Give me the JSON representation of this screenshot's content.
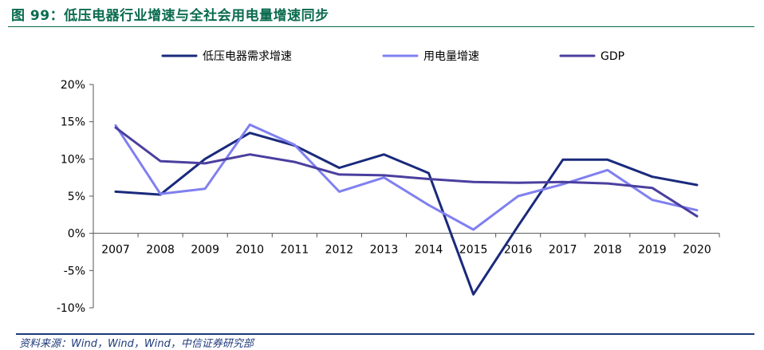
{
  "figure": {
    "title": "图 99：低压电器行业增速与全社会用电量增速同步"
  },
  "colors": {
    "title_green": "#0a6b4e",
    "axis": "#555555",
    "source_blue": "#1f3a7a"
  },
  "chart_data": {
    "type": "line",
    "categories": [
      "2007",
      "2008",
      "2009",
      "2010",
      "2011",
      "2012",
      "2013",
      "2014",
      "2015",
      "2016",
      "2017",
      "2018",
      "2019",
      "2020"
    ],
    "series": [
      {
        "name": "低压电器需求增速",
        "color": "#1a2a7c",
        "values": [
          5.6,
          5.2,
          10.0,
          13.5,
          11.8,
          8.8,
          10.6,
          8.1,
          -8.2,
          1.0,
          9.9,
          9.9,
          7.6,
          6.5
        ]
      },
      {
        "name": "用电量增速",
        "color": "#8080f0",
        "values": [
          14.5,
          5.3,
          6.0,
          14.6,
          11.9,
          5.6,
          7.5,
          3.8,
          0.5,
          5.0,
          6.6,
          8.5,
          4.5,
          3.1
        ]
      },
      {
        "name": "GDP",
        "color": "#4a3f9e",
        "values": [
          14.2,
          9.7,
          9.4,
          10.6,
          9.6,
          7.9,
          7.8,
          7.3,
          6.9,
          6.8,
          6.9,
          6.7,
          6.1,
          2.3
        ]
      }
    ],
    "y_ticks": [
      "20%",
      "15%",
      "10%",
      "5%",
      "0%",
      "-5%",
      "-10%"
    ],
    "ylim": [
      -10,
      20
    ],
    "legend_position": "top",
    "grid": false
  },
  "source": {
    "text": "资料来源：Wind，Wind，Wind，中信证券研究部"
  }
}
